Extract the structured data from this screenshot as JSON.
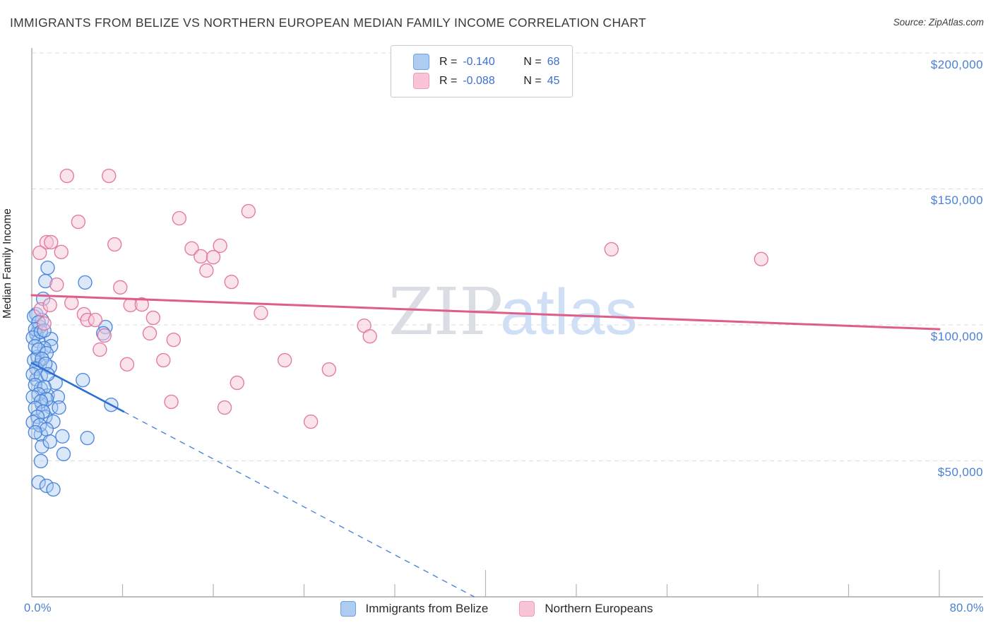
{
  "header": {
    "title": "IMMIGRANTS FROM BELIZE VS NORTHERN EUROPEAN MEDIAN FAMILY INCOME CORRELATION CHART",
    "source": "Source: ZipAtlas.com"
  },
  "watermark": {
    "zip": "ZIP",
    "atlas": "atlas"
  },
  "colors": {
    "axis_label_blue": "#4a7fd4",
    "legend_value_blue": "#3b6fd1",
    "belize_stroke": "#4080d8",
    "belize_fill": "#a9c9f0",
    "northern_stroke": "#e06f9c",
    "northern_fill": "#f8c8da",
    "belize_trend": "#2e6fd2",
    "northern_trend": "#e05c8a",
    "gridline": "#dcdcdc"
  },
  "chart_data": {
    "type": "scatter",
    "title": "IMMIGRANTS FROM BELIZE VS NORTHERN EUROPEAN MEDIAN FAMILY INCOME CORRELATION CHART",
    "ylabel": "Median Family Income",
    "x_axis": {
      "left_label": "0.0%",
      "right_label": "80.0%",
      "min_pct": 0,
      "max_pct": 80,
      "minor_tick_pcts": [
        8,
        16,
        24,
        32,
        48,
        56,
        64,
        72
      ],
      "major_tick_pcts": [
        40,
        80
      ]
    },
    "y_axis": {
      "min": 0,
      "max": 200000
    },
    "grid": "horizontal-dashed",
    "legend_position": "top-center and bottom-center",
    "y_ticks": [
      {
        "value": 200000,
        "label": "$200,000"
      },
      {
        "value": 150000,
        "label": "$150,000"
      },
      {
        "value": 100000,
        "label": "$100,000"
      },
      {
        "value": 50000,
        "label": "$50,000"
      }
    ],
    "series": [
      {
        "name": "Immigrants from Belize",
        "r_label": "R =",
        "r_value": "-0.140",
        "n_label": "N =",
        "n_value": "68",
        "stroke": "#4080d8",
        "fill": "#a9c9f0",
        "fill_opacity": 0.42,
        "points": [
          {
            "x": 1.4,
            "y": 121000
          },
          {
            "x": 1.2,
            "y": 116100
          },
          {
            "x": 4.7,
            "y": 115600
          },
          {
            "x": 1.0,
            "y": 109600
          },
          {
            "x": 6.5,
            "y": 99200
          },
          {
            "x": 6.3,
            "y": 96900
          },
          {
            "x": 0.4,
            "y": 103900
          },
          {
            "x": 0.9,
            "y": 101800
          },
          {
            "x": 0.7,
            "y": 99200
          },
          {
            "x": 0.4,
            "y": 96600
          },
          {
            "x": 0.6,
            "y": 94000
          },
          {
            "x": 1.7,
            "y": 94800
          },
          {
            "x": 1.7,
            "y": 92200
          },
          {
            "x": 1.1,
            "y": 91400
          },
          {
            "x": 0.5,
            "y": 88300
          },
          {
            "x": 0.7,
            "y": 85200
          },
          {
            "x": 1.6,
            "y": 84400
          },
          {
            "x": 0.4,
            "y": 80000
          },
          {
            "x": 2.1,
            "y": 78700
          },
          {
            "x": 0.8,
            "y": 76600
          },
          {
            "x": 1.4,
            "y": 74000
          },
          {
            "x": 2.3,
            "y": 73500
          },
          {
            "x": 0.9,
            "y": 70600
          },
          {
            "x": 1.7,
            "y": 69600
          },
          {
            "x": 2.4,
            "y": 69600
          },
          {
            "x": 1.2,
            "y": 66200
          },
          {
            "x": 1.9,
            "y": 64400
          },
          {
            "x": 4.5,
            "y": 79700
          },
          {
            "x": 7.0,
            "y": 70600
          },
          {
            "x": 0.8,
            "y": 59700
          },
          {
            "x": 2.7,
            "y": 59000
          },
          {
            "x": 4.9,
            "y": 58400
          },
          {
            "x": 0.9,
            "y": 55300
          },
          {
            "x": 2.8,
            "y": 52500
          },
          {
            "x": 0.8,
            "y": 49900
          },
          {
            "x": 0.6,
            "y": 42100
          },
          {
            "x": 1.3,
            "y": 40800
          },
          {
            "x": 1.9,
            "y": 39500
          },
          {
            "x": 0.2,
            "y": 103100
          },
          {
            "x": 0.6,
            "y": 101000
          },
          {
            "x": 0.3,
            "y": 98400
          },
          {
            "x": 0.1,
            "y": 95300
          },
          {
            "x": 0.8,
            "y": 97400
          },
          {
            "x": 1.1,
            "y": 97900
          },
          {
            "x": 0.3,
            "y": 92200
          },
          {
            "x": 0.6,
            "y": 90900
          },
          {
            "x": 1.3,
            "y": 89600
          },
          {
            "x": 0.2,
            "y": 87000
          },
          {
            "x": 0.9,
            "y": 87500
          },
          {
            "x": 0.4,
            "y": 83900
          },
          {
            "x": 1.2,
            "y": 85700
          },
          {
            "x": 0.1,
            "y": 81800
          },
          {
            "x": 0.8,
            "y": 81300
          },
          {
            "x": 1.4,
            "y": 81800
          },
          {
            "x": 0.3,
            "y": 77900
          },
          {
            "x": 1.1,
            "y": 77100
          },
          {
            "x": 0.6,
            "y": 74500
          },
          {
            "x": 0.1,
            "y": 73500
          },
          {
            "x": 1.3,
            "y": 72700
          },
          {
            "x": 0.8,
            "y": 71900
          },
          {
            "x": 0.3,
            "y": 69400
          },
          {
            "x": 1.0,
            "y": 68100
          },
          {
            "x": 0.5,
            "y": 66200
          },
          {
            "x": 0.1,
            "y": 64200
          },
          {
            "x": 0.7,
            "y": 63100
          },
          {
            "x": 1.3,
            "y": 61600
          },
          {
            "x": 0.3,
            "y": 60500
          },
          {
            "x": 1.6,
            "y": 57100
          }
        ]
      },
      {
        "name": "Northern Europeans",
        "r_label": "R =",
        "r_value": "-0.088",
        "n_label": "N =",
        "n_value": "45",
        "stroke": "#e06f9c",
        "fill": "#f8c8da",
        "fill_opacity": 0.5,
        "points": [
          {
            "x": 3.1,
            "y": 154800
          },
          {
            "x": 6.8,
            "y": 154800
          },
          {
            "x": 4.1,
            "y": 137900
          },
          {
            "x": 13.0,
            "y": 139200
          },
          {
            "x": 19.1,
            "y": 141800
          },
          {
            "x": 1.3,
            "y": 130400
          },
          {
            "x": 1.7,
            "y": 130400
          },
          {
            "x": 0.7,
            "y": 126500
          },
          {
            "x": 2.6,
            "y": 126800
          },
          {
            "x": 7.3,
            "y": 129600
          },
          {
            "x": 14.1,
            "y": 128100
          },
          {
            "x": 16.6,
            "y": 129100
          },
          {
            "x": 14.9,
            "y": 125200
          },
          {
            "x": 16.0,
            "y": 124900
          },
          {
            "x": 15.4,
            "y": 120000
          },
          {
            "x": 17.6,
            "y": 115800
          },
          {
            "x": 2.2,
            "y": 114800
          },
          {
            "x": 7.8,
            "y": 113800
          },
          {
            "x": 3.5,
            "y": 108100
          },
          {
            "x": 8.7,
            "y": 107300
          },
          {
            "x": 9.7,
            "y": 107500
          },
          {
            "x": 4.6,
            "y": 103900
          },
          {
            "x": 4.9,
            "y": 101800
          },
          {
            "x": 5.6,
            "y": 101800
          },
          {
            "x": 6.4,
            "y": 96100
          },
          {
            "x": 10.7,
            "y": 102600
          },
          {
            "x": 10.4,
            "y": 96900
          },
          {
            "x": 6.0,
            "y": 90900
          },
          {
            "x": 8.4,
            "y": 85500
          },
          {
            "x": 12.5,
            "y": 94500
          },
          {
            "x": 11.6,
            "y": 87000
          },
          {
            "x": 20.2,
            "y": 104400
          },
          {
            "x": 29.3,
            "y": 99700
          },
          {
            "x": 29.8,
            "y": 95800
          },
          {
            "x": 26.2,
            "y": 83600
          },
          {
            "x": 22.3,
            "y": 87000
          },
          {
            "x": 18.1,
            "y": 78700
          },
          {
            "x": 12.3,
            "y": 71700
          },
          {
            "x": 17.0,
            "y": 69600
          },
          {
            "x": 24.6,
            "y": 64400
          },
          {
            "x": 51.1,
            "y": 127800
          },
          {
            "x": 64.3,
            "y": 124200
          },
          {
            "x": 0.8,
            "y": 105700
          },
          {
            "x": 1.1,
            "y": 100500
          },
          {
            "x": 1.6,
            "y": 107300
          }
        ]
      }
    ],
    "trendlines": [
      {
        "series": "Immigrants from Belize",
        "color": "#2e6fd2",
        "solid": [
          [
            0,
            86000
          ],
          [
            8.1,
            68100
          ]
        ],
        "dashed": [
          [
            8.1,
            68100
          ],
          [
            39.0,
            0
          ]
        ]
      },
      {
        "series": "Northern Europeans",
        "color": "#e05c8a",
        "solid": [
          [
            0,
            110900
          ],
          [
            80,
            98400
          ]
        ]
      }
    ]
  }
}
